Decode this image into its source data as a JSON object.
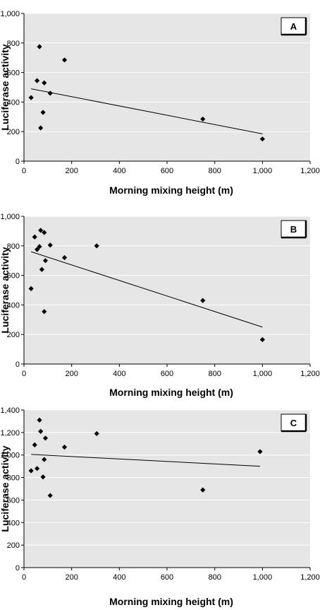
{
  "chart_data": [
    {
      "type": "scatter",
      "panel_label": "A",
      "xlabel": "Morning mixing height (m)",
      "ylabel": "Luciferase activity",
      "xlim": [
        0,
        1200
      ],
      "ylim": [
        0,
        1000
      ],
      "xticks": [
        0,
        200,
        400,
        600,
        800,
        1000,
        1200
      ],
      "xtick_labels": [
        "0",
        "200",
        "400",
        "600",
        "800",
        "1,000",
        "1,200"
      ],
      "yticks": [
        0,
        200,
        400,
        600,
        800,
        1000
      ],
      "ytick_labels": [
        "0",
        "200",
        "400",
        "600",
        "800",
        "1,000"
      ],
      "grid": "horizontal",
      "points": [
        {
          "x": 30,
          "y": 430
        },
        {
          "x": 55,
          "y": 545
        },
        {
          "x": 65,
          "y": 775
        },
        {
          "x": 70,
          "y": 225
        },
        {
          "x": 80,
          "y": 330
        },
        {
          "x": 85,
          "y": 530
        },
        {
          "x": 110,
          "y": 460
        },
        {
          "x": 170,
          "y": 685
        },
        {
          "x": 750,
          "y": 285
        },
        {
          "x": 1000,
          "y": 150
        }
      ],
      "trendline": [
        {
          "x": 30,
          "y": 490
        },
        {
          "x": 1000,
          "y": 185
        }
      ]
    },
    {
      "type": "scatter",
      "panel_label": "B",
      "xlabel": "Morning mixing height (m)",
      "ylabel": "Luciferase activity",
      "xlim": [
        0,
        1200
      ],
      "ylim": [
        0,
        1000
      ],
      "xticks": [
        0,
        200,
        400,
        600,
        800,
        1000,
        1200
      ],
      "xtick_labels": [
        "0",
        "200",
        "400",
        "600",
        "800",
        "1,000",
        "1,200"
      ],
      "yticks": [
        0,
        200,
        400,
        600,
        800,
        1000
      ],
      "ytick_labels": [
        "0",
        "200",
        "400",
        "600",
        "800",
        "1,000"
      ],
      "grid": "horizontal",
      "points": [
        {
          "x": 30,
          "y": 510
        },
        {
          "x": 45,
          "y": 860
        },
        {
          "x": 55,
          "y": 775
        },
        {
          "x": 65,
          "y": 795
        },
        {
          "x": 70,
          "y": 905
        },
        {
          "x": 75,
          "y": 640
        },
        {
          "x": 85,
          "y": 890
        },
        {
          "x": 85,
          "y": 355
        },
        {
          "x": 90,
          "y": 700
        },
        {
          "x": 110,
          "y": 805
        },
        {
          "x": 170,
          "y": 720
        },
        {
          "x": 305,
          "y": 800
        },
        {
          "x": 750,
          "y": 430
        },
        {
          "x": 1000,
          "y": 165
        }
      ],
      "trendline": [
        {
          "x": 30,
          "y": 760
        },
        {
          "x": 1000,
          "y": 250
        }
      ]
    },
    {
      "type": "scatter",
      "panel_label": "C",
      "xlabel": "Morning mixing height (m)",
      "ylabel": "Luciferase activity",
      "xlim": [
        0,
        1200
      ],
      "ylim": [
        0,
        1400
      ],
      "xticks": [
        0,
        200,
        400,
        600,
        800,
        1000,
        1200
      ],
      "xtick_labels": [
        "0",
        "200",
        "400",
        "600",
        "800",
        "1,000",
        "1,200"
      ],
      "yticks": [
        0,
        200,
        400,
        600,
        800,
        1000,
        1200,
        1400
      ],
      "ytick_labels": [
        "0",
        "200",
        "400",
        "600",
        "800",
        "1,000",
        "1,200",
        "1,400"
      ],
      "grid": "horizontal",
      "points": [
        {
          "x": 30,
          "y": 860
        },
        {
          "x": 45,
          "y": 1090
        },
        {
          "x": 55,
          "y": 880
        },
        {
          "x": 65,
          "y": 1310
        },
        {
          "x": 70,
          "y": 1210
        },
        {
          "x": 80,
          "y": 805
        },
        {
          "x": 85,
          "y": 960
        },
        {
          "x": 90,
          "y": 1150
        },
        {
          "x": 110,
          "y": 640
        },
        {
          "x": 170,
          "y": 1070
        },
        {
          "x": 305,
          "y": 1190
        },
        {
          "x": 750,
          "y": 690
        },
        {
          "x": 990,
          "y": 1030
        }
      ],
      "trendline": [
        {
          "x": 30,
          "y": 1005
        },
        {
          "x": 990,
          "y": 900
        }
      ]
    }
  ]
}
